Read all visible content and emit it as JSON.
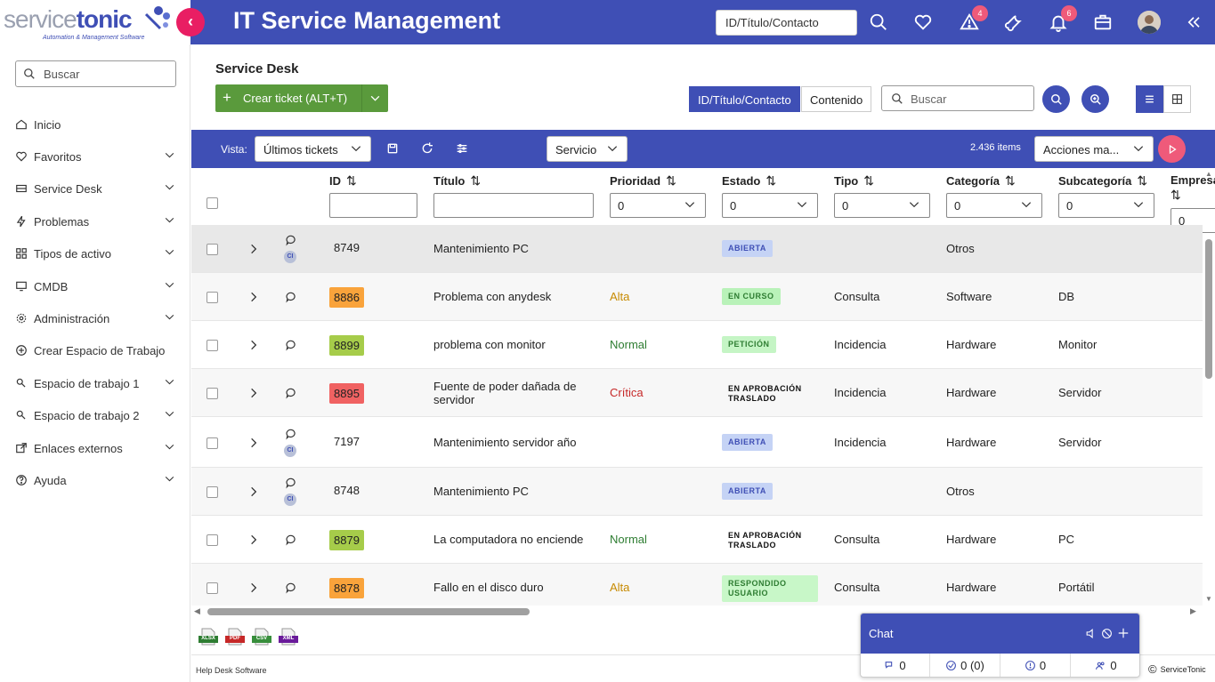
{
  "brand": {
    "prefix": "service",
    "name": "tonic",
    "tagline": "Automation & Management Software"
  },
  "header": {
    "title": "IT Service Management",
    "search_value": "ID/Título/Contacto",
    "alerts_badge": "4",
    "notifications_badge": "6"
  },
  "sidebar": {
    "search_placeholder": "Buscar",
    "items": [
      {
        "label": "Inicio",
        "icon": "home-icon"
      },
      {
        "label": "Favoritos",
        "icon": "heart-icon"
      },
      {
        "label": "Service Desk",
        "icon": "desk-icon"
      },
      {
        "label": "Problemas",
        "icon": "bolt-icon"
      },
      {
        "label": "Tipos de activo",
        "icon": "grid-icon"
      },
      {
        "label": "CMDB",
        "icon": "monitor-icon"
      },
      {
        "label": "Administración",
        "icon": "gear-icon"
      },
      {
        "label": "Crear Espacio de Trabajo",
        "icon": "plus-circle-icon"
      },
      {
        "label": "Espacio de trabajo 1",
        "icon": "search-user-icon"
      },
      {
        "label": "Espacio de trabajo 2",
        "icon": "search-user-icon"
      },
      {
        "label": "Enlaces externos",
        "icon": "external-link-icon"
      },
      {
        "label": "Ayuda",
        "icon": "help-icon"
      }
    ]
  },
  "main": {
    "title": "Service Desk",
    "create_button": "Crear ticket (ALT+T)",
    "search_mode_active": "ID/Título/Contacto",
    "search_mode_other": "Contenido",
    "search_placeholder": "Buscar"
  },
  "toolbar": {
    "view_label": "Vista:",
    "view_value": "Últimos tickets",
    "service_value": "Servicio",
    "items_count": "2.436 items",
    "actions_value": "Acciones ma..."
  },
  "columns": {
    "id": "ID",
    "titulo": "Título",
    "prioridad": "Prioridad",
    "estado": "Estado",
    "tipo": "Tipo",
    "categoria": "Categoría",
    "subcategoria": "Subcategoría",
    "empresa": "Empresa",
    "filter_default": "0"
  },
  "tickets": [
    {
      "id": "8749",
      "ci": "CI",
      "title": "Mantenimiento PC",
      "title2": "",
      "priority": "",
      "status": "ABIERTA",
      "status2": "",
      "type": "",
      "category": "Otros",
      "subcategory": ""
    },
    {
      "id": "8886",
      "ci": "",
      "title": "Problema con anydesk",
      "title2": "",
      "priority": "Alta",
      "status": "EN CURSO",
      "status2": "",
      "type": "Consulta",
      "category": "Software",
      "subcategory": "DB"
    },
    {
      "id": "8899",
      "ci": "",
      "title": "problema con monitor",
      "title2": "",
      "priority": "Normal",
      "status": "PETICIÓN",
      "status2": "",
      "type": "Incidencia",
      "category": "Hardware",
      "subcategory": "Monitor"
    },
    {
      "id": "8895",
      "ci": "",
      "title": "Fuente de poder dañada de",
      "title2": "servidor",
      "priority": "Crítica",
      "status": "EN APROBACIÓN",
      "status2": "TRASLADO",
      "type": "Incidencia",
      "category": "Hardware",
      "subcategory": "Servidor"
    },
    {
      "id": "7197",
      "ci": "CI",
      "title": "Mantenimiento servidor año",
      "title2": "",
      "priority": "",
      "status": "ABIERTA",
      "status2": "",
      "type": "Incidencia",
      "category": "Hardware",
      "subcategory": "Servidor"
    },
    {
      "id": "8748",
      "ci": "CI",
      "title": "Mantenimiento PC",
      "title2": "",
      "priority": "",
      "status": "ABIERTA",
      "status2": "",
      "type": "",
      "category": "Otros",
      "subcategory": ""
    },
    {
      "id": "8879",
      "ci": "",
      "title": "La computadora no enciende",
      "title2": "",
      "priority": "Normal",
      "status": "EN APROBACIÓN",
      "status2": "TRASLADO",
      "type": "Consulta",
      "category": "Hardware",
      "subcategory": "PC"
    },
    {
      "id": "8878",
      "ci": "",
      "title": "Fallo en el disco duro",
      "title2": "",
      "priority": "Alta",
      "status": "RESPONDIDO",
      "status2": "USUARIO",
      "type": "Consulta",
      "category": "Hardware",
      "subcategory": "Portátil"
    }
  ],
  "colors": {
    "primary": "#3f4fb5",
    "accent": "#e91e63",
    "create": "#5a9a3c",
    "id_orange": "#f9a33b",
    "id_green": "#a6cc4a",
    "id_red": "#f06262",
    "prio_alta": "#c78a00",
    "prio_normal": "#2e7d32",
    "prio_critica": "#c62828",
    "st_abierta": "#c5d3f5",
    "st_encurso": "#b9f2b9",
    "st_peticion": "#c5f5c5",
    "st_respondido": "#c8f7c8"
  },
  "exports": [
    "XLSX",
    "PDF",
    "CSV",
    "XML"
  ],
  "footer": {
    "help_text": "Help Desk Software",
    "brand": "ServiceTonic"
  },
  "chat": {
    "title": "Chat",
    "stat1": "0",
    "stat2": "0 (0)",
    "stat3": "0",
    "stat4": "0"
  }
}
